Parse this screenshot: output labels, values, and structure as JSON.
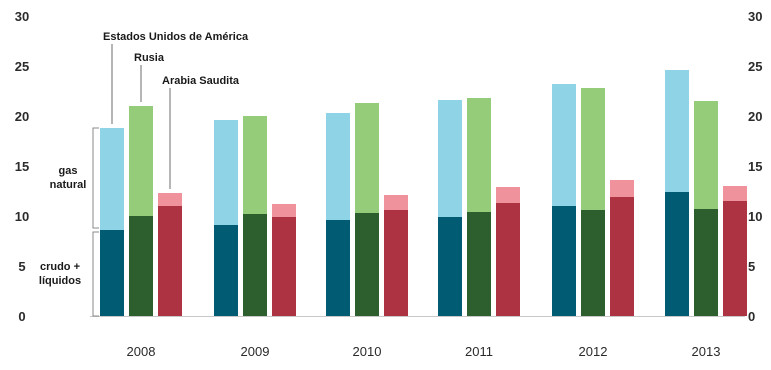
{
  "chart_data": {
    "type": "bar",
    "stacked": true,
    "grouped": true,
    "categories": [
      "2008",
      "2009",
      "2010",
      "2011",
      "2012",
      "2013"
    ],
    "ylim": [
      0,
      30
    ],
    "yticks": [
      0,
      5,
      10,
      15,
      20,
      25,
      30
    ],
    "grid": false,
    "components": [
      "crudo + líquidos",
      "gas natural"
    ],
    "series": [
      {
        "name": "Estados Unidos de América",
        "crude": [
          8.6,
          9.1,
          9.6,
          9.9,
          11.0,
          12.4
        ],
        "gas": [
          10.2,
          10.5,
          10.7,
          11.7,
          12.2,
          12.2
        ],
        "colors": {
          "crude": "#005b73",
          "gas": "#8ed3e6"
        }
      },
      {
        "name": "Rusia",
        "crude": [
          10.0,
          10.2,
          10.3,
          10.4,
          10.6,
          10.7
        ],
        "gas": [
          11.0,
          9.8,
          11.0,
          11.4,
          12.2,
          10.8
        ],
        "colors": {
          "crude": "#2d5e2e",
          "gas": "#95cc79"
        }
      },
      {
        "name": "Arabia Saudita",
        "crude": [
          11.0,
          9.9,
          10.6,
          11.3,
          11.9,
          11.5
        ],
        "gas": [
          1.3,
          1.3,
          1.5,
          1.6,
          1.7,
          1.5
        ],
        "colors": {
          "crude": "#ad3343",
          "gas": "#f0929c"
        }
      }
    ],
    "annotations": [
      "Estados Unidos de América",
      "Rusia",
      "Arabia Saudita"
    ],
    "brace_labels": {
      "gas": [
        "gas",
        "natural"
      ],
      "crude": [
        "crudo +",
        "líquidos"
      ]
    }
  }
}
